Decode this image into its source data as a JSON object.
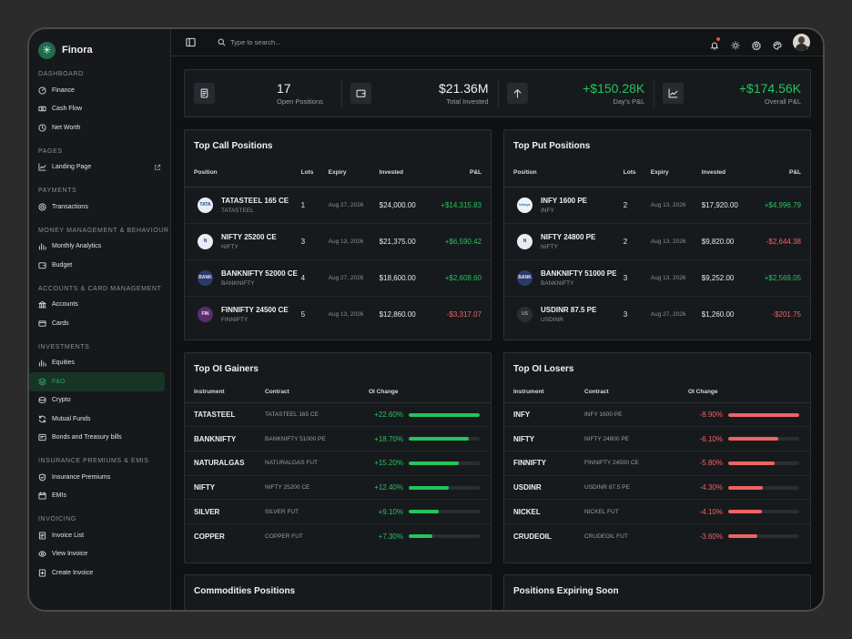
{
  "brand": {
    "name": "Finora"
  },
  "sidebar": {
    "sections": [
      {
        "title": "DASHBOARD",
        "items": [
          {
            "label": "Finance",
            "icon": "gauge-icon"
          },
          {
            "label": "Cash Flow",
            "icon": "cash-icon"
          },
          {
            "label": "Net Worth",
            "icon": "clock-icon"
          }
        ]
      },
      {
        "title": "PAGES",
        "items": [
          {
            "label": "Landing Page",
            "icon": "chart-line-icon",
            "external": true
          }
        ]
      },
      {
        "title": "PAYMENTS",
        "items": [
          {
            "label": "Transactions",
            "icon": "coin-icon"
          }
        ]
      },
      {
        "title": "MONEY MANAGEMENT & BEHAVIOUR",
        "items": [
          {
            "label": "Monthly Analytics",
            "icon": "bar-chart-icon"
          },
          {
            "label": "Budget",
            "icon": "wallet-icon"
          }
        ]
      },
      {
        "title": "ACCOUNTS & CARD MANAGEMENT",
        "items": [
          {
            "label": "Accounts",
            "icon": "bank-icon"
          },
          {
            "label": "Cards",
            "icon": "card-icon"
          }
        ]
      },
      {
        "title": "INVESTMENTS",
        "items": [
          {
            "label": "Equities",
            "icon": "bar-chart-icon"
          },
          {
            "label": "F&O",
            "icon": "layers-icon",
            "active": true
          },
          {
            "label": "Crypto",
            "icon": "coins-icon"
          },
          {
            "label": "Mutual Funds",
            "icon": "refresh-icon"
          },
          {
            "label": "Bonds and Treasury bills",
            "icon": "certificate-icon"
          }
        ]
      },
      {
        "title": "INSURANCE PREMIUMS & EMIS",
        "items": [
          {
            "label": "Insurance Premiums",
            "icon": "shield-icon"
          },
          {
            "label": "EMIs",
            "icon": "calendar-icon"
          }
        ]
      },
      {
        "title": "INVOICING",
        "items": [
          {
            "label": "Invoice List",
            "icon": "list-icon"
          },
          {
            "label": "View Invoice",
            "icon": "eye-icon"
          },
          {
            "label": "Create Invoice",
            "icon": "plus-doc-icon"
          }
        ]
      }
    ]
  },
  "topbar": {
    "search_placeholder": "Type to search..."
  },
  "stats": [
    {
      "value": "17",
      "label": "Open Positions",
      "icon": "document-icon"
    },
    {
      "value": "$21.36M",
      "label": "Total Invested",
      "icon": "wallet-icon"
    },
    {
      "value": "+$150.28K",
      "label": "Day's P&L",
      "icon": "arrow-up-icon",
      "green": true
    },
    {
      "value": "+$174.56K",
      "label": "Overall P&L",
      "icon": "chart-line-icon",
      "green": true
    }
  ],
  "call_positions": {
    "title": "Top Call Positions",
    "headers": [
      "Position",
      "Lots",
      "Expiry",
      "Invested",
      "P&L"
    ],
    "rows": [
      {
        "name": "TATASTEEL 165 CE",
        "sub": "TATASTEEL",
        "logo": "TATA",
        "logo_bg": "#e9eef5",
        "logo_fg": "#1d4f91",
        "lots": "1",
        "expiry": "Aug 27, 2026",
        "invested": "$24,000.00",
        "pnl": "+$14,315.83",
        "positive": true
      },
      {
        "name": "NIFTY 25200 CE",
        "sub": "NIFTY",
        "logo": "N",
        "logo_bg": "#ecebf3",
        "logo_fg": "#3b3b7a",
        "lots": "3",
        "expiry": "Aug 13, 2026",
        "invested": "$21,375.00",
        "pnl": "+$6,590.42",
        "positive": true
      },
      {
        "name": "BANKNIFTY 52000 CE",
        "sub": "BANKNIFTY",
        "logo": "BANK",
        "logo_bg": "#2a3a6b",
        "logo_fg": "#e8ecf8",
        "lots": "4",
        "expiry": "Aug 27, 2026",
        "invested": "$18,600.00",
        "pnl": "+$2,608.60",
        "positive": true
      },
      {
        "name": "FINNIFTY 24500 CE",
        "sub": "FINNIFTY",
        "logo": "FIN",
        "logo_bg": "#5a2f6e",
        "logo_fg": "#f3e8f8",
        "lots": "5",
        "expiry": "Aug 13, 2026",
        "invested": "$12,860.00",
        "pnl": "-$3,317.07",
        "positive": false
      }
    ]
  },
  "put_positions": {
    "title": "Top Put Positions",
    "headers": [
      "Position",
      "Lots",
      "Expiry",
      "Invested",
      "P&L"
    ],
    "rows": [
      {
        "name": "INFY 1600 PE",
        "sub": "INFY",
        "logo": "Infosys",
        "logo_bg": "#eef3f8",
        "logo_fg": "#1e6ab5",
        "lots": "2",
        "expiry": "Aug 13, 2026",
        "invested": "$17,920.00",
        "pnl": "+$4,996.79",
        "positive": true
      },
      {
        "name": "NIFTY 24800 PE",
        "sub": "NIFTY",
        "logo": "N",
        "logo_bg": "#ecebf3",
        "logo_fg": "#3b3b7a",
        "lots": "2",
        "expiry": "Aug 13, 2026",
        "invested": "$9,820.00",
        "pnl": "-$2,644.38",
        "positive": false
      },
      {
        "name": "BANKNIFTY 51000 PE",
        "sub": "BANKNIFTY",
        "logo": "BANK",
        "logo_bg": "#2a3a6b",
        "logo_fg": "#e8ecf8",
        "lots": "3",
        "expiry": "Aug 13, 2026",
        "invested": "$9,252.00",
        "pnl": "+$2,569.05",
        "positive": true
      },
      {
        "name": "USDINR 87.5 PE",
        "sub": "USDINR",
        "logo": "US",
        "logo_bg": "#2a2e33",
        "logo_fg": "#9a9ea4",
        "lots": "3",
        "expiry": "Aug 27, 2026",
        "invested": "$1,260.00",
        "pnl": "-$201.75",
        "positive": false
      }
    ]
  },
  "oi_gainers": {
    "title": "Top OI Gainers",
    "headers": [
      "Instrument",
      "Contract",
      "OI Change"
    ],
    "rows": [
      {
        "instrument": "TATASTEEL",
        "contract": "TATASTEEL 165 CE",
        "change": "+22.60%",
        "level": 1.0
      },
      {
        "instrument": "BANKNIFTY",
        "contract": "BANKNIFTY 51000 PE",
        "change": "+18.70%",
        "level": 0.85
      },
      {
        "instrument": "NATURALGAS",
        "contract": "NATURALGAS FUT",
        "change": "+15.20%",
        "level": 0.7
      },
      {
        "instrument": "NIFTY",
        "contract": "NIFTY 25200 CE",
        "change": "+12.40%",
        "level": 0.57
      },
      {
        "instrument": "SILVER",
        "contract": "SILVER FUT",
        "change": "+9.10%",
        "level": 0.42
      },
      {
        "instrument": "COPPER",
        "contract": "COPPER FUT",
        "change": "+7.30%",
        "level": 0.33
      }
    ]
  },
  "oi_losers": {
    "title": "Top OI Losers",
    "headers": [
      "Instrument",
      "Contract",
      "OI Change"
    ],
    "rows": [
      {
        "instrument": "INFY",
        "contract": "INFY 1600 PE",
        "change": "-8.90%",
        "level": 1.0
      },
      {
        "instrument": "NIFTY",
        "contract": "NIFTY 24800 PE",
        "change": "-6.10%",
        "level": 0.7
      },
      {
        "instrument": "FINNIFTY",
        "contract": "FINNIFTY 24500 CE",
        "change": "-5.80%",
        "level": 0.66
      },
      {
        "instrument": "USDINR",
        "contract": "USDINR 87.5 PE",
        "change": "-4.30%",
        "level": 0.49
      },
      {
        "instrument": "NICKEL",
        "contract": "NICKEL FUT",
        "change": "-4.10%",
        "level": 0.47
      },
      {
        "instrument": "CRUDEOIL",
        "contract": "CRUDEOIL FUT",
        "change": "-3.60%",
        "level": 0.41
      }
    ]
  },
  "bottom_cards": {
    "left_title": "Commodities Positions",
    "right_title": "Positions Expiring Soon"
  },
  "colors": {
    "positive": "#22c55e",
    "negative": "#f06363",
    "brand": "#1f6b4c"
  }
}
